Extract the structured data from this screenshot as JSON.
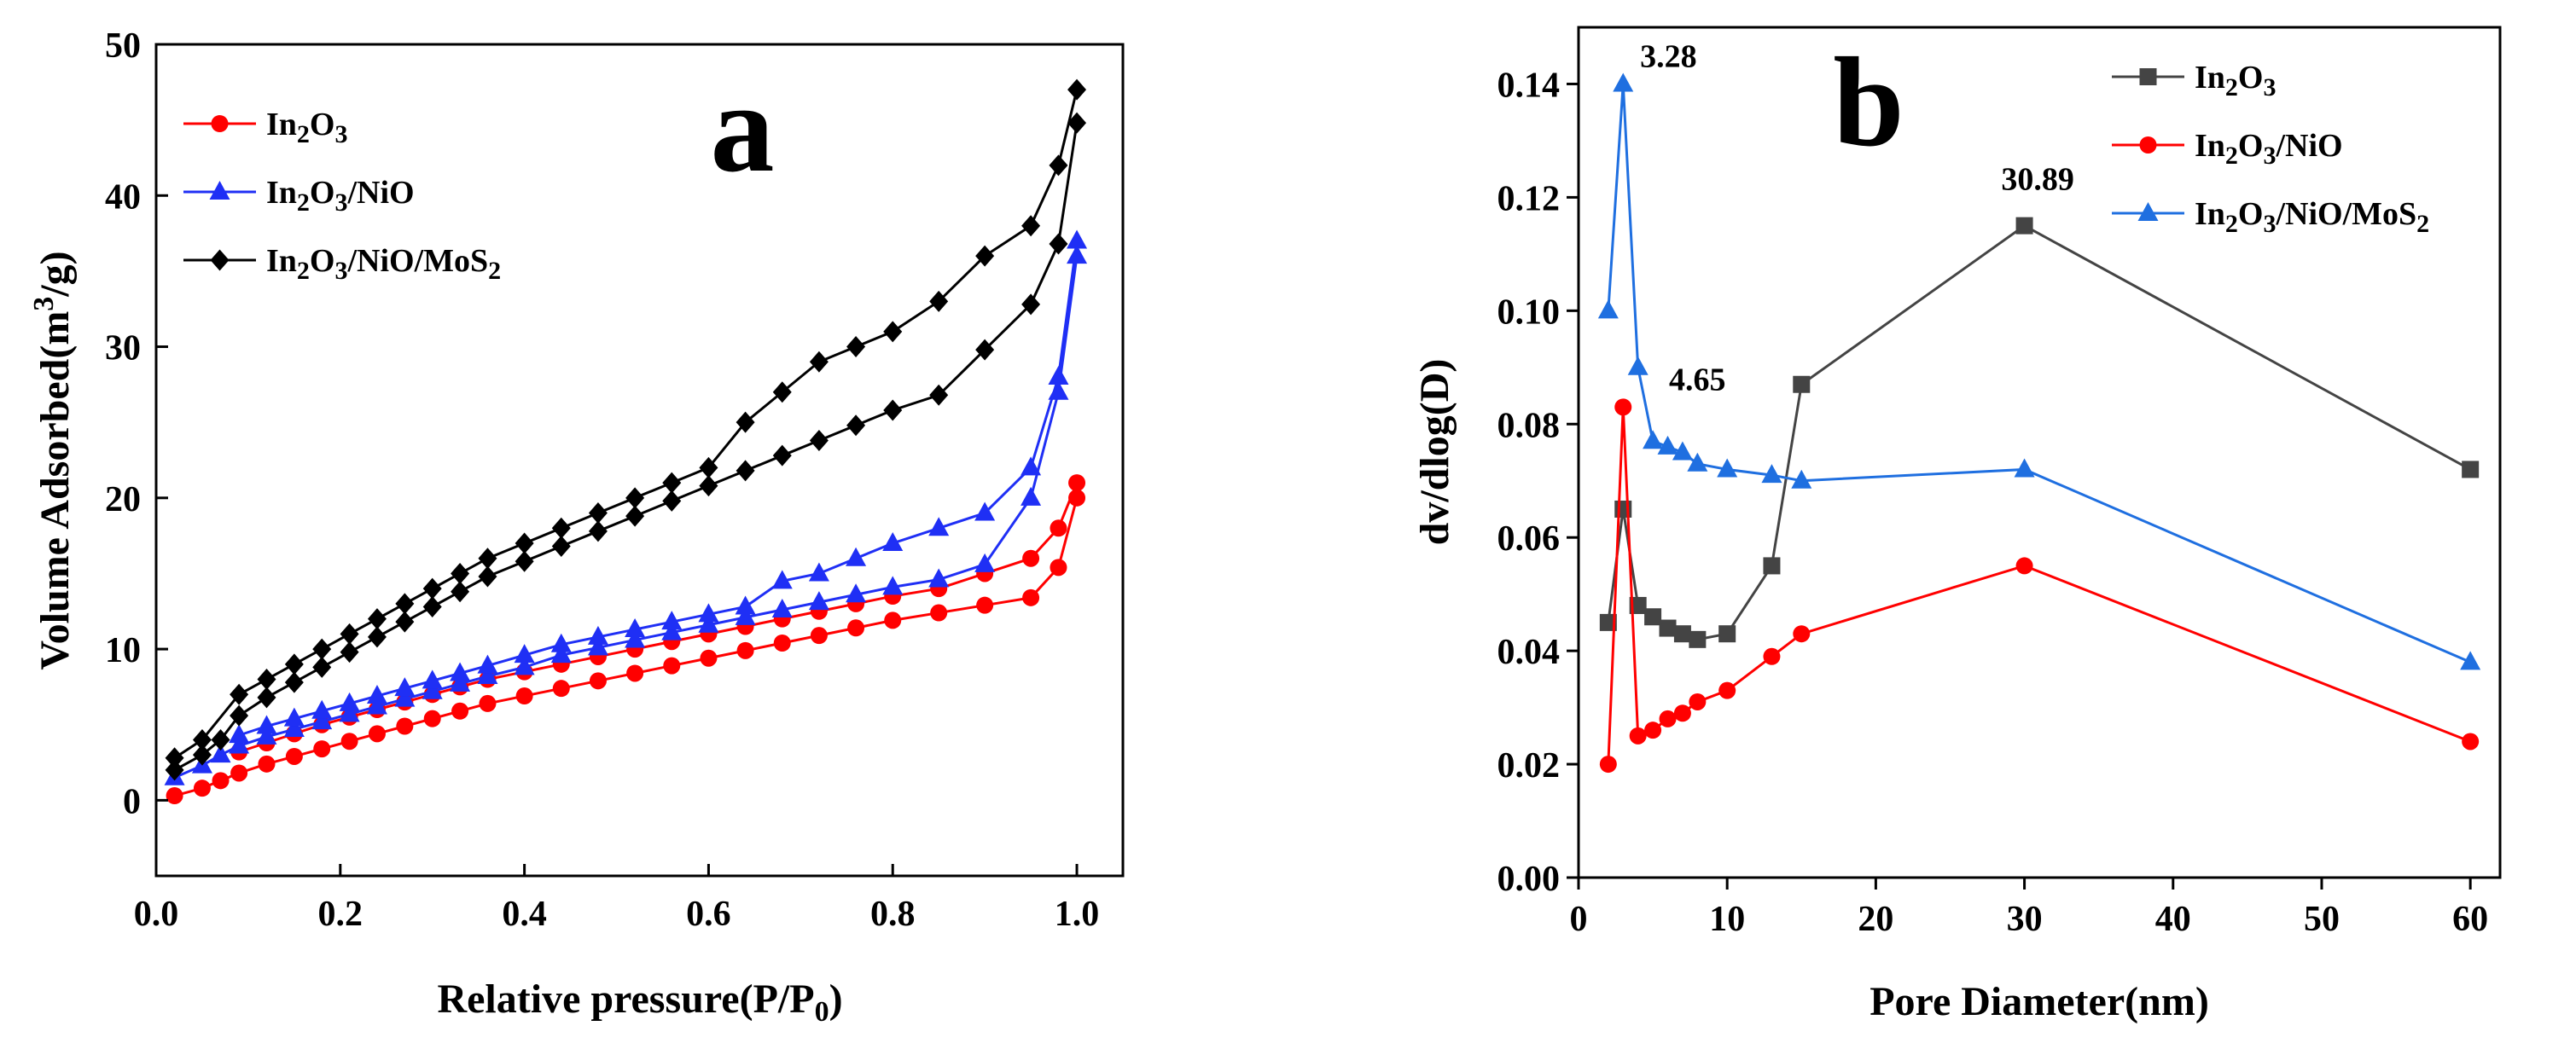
{
  "chart_data": [
    {
      "type": "line",
      "panel_label": "a",
      "xlabel": "Relative pressure(P/P",
      "xlabel_sub": "0",
      "xlabel_end": ")",
      "ylabel": "Volume Adsorbed(m",
      "ylabel_sup": "3",
      "ylabel_end": "/g)",
      "xlim": [
        0,
        1.05
      ],
      "ylim": [
        -5,
        50
      ],
      "xticks": [
        "0.0",
        "0.2",
        "0.4",
        "0.6",
        "0.8",
        "1.0"
      ],
      "yticks": [
        "0",
        "10",
        "20",
        "30",
        "40",
        "50"
      ],
      "legend_position": "top-left",
      "series": [
        {
          "name": "In2O3",
          "legend": {
            "t1": "In",
            "s1": "2",
            "t2": "O",
            "s2": "3",
            "t3": "",
            "s3": ""
          },
          "color": "#ff0000",
          "marker": "circle",
          "adsorption": {
            "x": [
              0.02,
              0.05,
              0.07,
              0.09,
              0.12,
              0.15,
              0.18,
              0.21,
              0.24,
              0.27,
              0.3,
              0.33,
              0.36,
              0.4,
              0.44,
              0.48,
              0.52,
              0.56,
              0.6,
              0.64,
              0.68,
              0.72,
              0.76,
              0.8,
              0.85,
              0.9,
              0.95,
              0.98,
              1.0
            ],
            "y": [
              0.3,
              0.8,
              1.3,
              1.8,
              2.4,
              2.9,
              3.4,
              3.9,
              4.4,
              4.9,
              5.4,
              5.9,
              6.4,
              6.9,
              7.4,
              7.9,
              8.4,
              8.9,
              9.4,
              9.9,
              10.4,
              10.9,
              11.4,
              11.9,
              12.4,
              12.9,
              13.4,
              15.4,
              20.0
            ]
          },
          "desorption": {
            "x": [
              1.0,
              0.98,
              0.95,
              0.9,
              0.85,
              0.8,
              0.76,
              0.72,
              0.68,
              0.64,
              0.6,
              0.56,
              0.52,
              0.48,
              0.44,
              0.4,
              0.36,
              0.33,
              0.3,
              0.27,
              0.24,
              0.21,
              0.18,
              0.15,
              0.12,
              0.09
            ],
            "y": [
              21.0,
              18.0,
              16.0,
              15.0,
              14.0,
              13.5,
              13.0,
              12.5,
              12.0,
              11.5,
              11.0,
              10.5,
              10.0,
              9.5,
              9.0,
              8.5,
              8.0,
              7.5,
              7.0,
              6.5,
              6.0,
              5.5,
              5.0,
              4.4,
              3.8,
              3.2
            ]
          }
        },
        {
          "name": "In2O3/NiO",
          "legend": {
            "t1": "In",
            "s1": "2",
            "t2": "O",
            "s2": "3",
            "t3": "/NiO",
            "s3": ""
          },
          "color": "#1f2ff5",
          "marker": "triangle",
          "adsorption": {
            "x": [
              0.02,
              0.05,
              0.07,
              0.09,
              0.12,
              0.15,
              0.18,
              0.21,
              0.24,
              0.27,
              0.3,
              0.33,
              0.36,
              0.4,
              0.44,
              0.48,
              0.52,
              0.56,
              0.6,
              0.64,
              0.68,
              0.72,
              0.76,
              0.8,
              0.85,
              0.9,
              0.95,
              0.98,
              1.0
            ],
            "y": [
              1.5,
              2.3,
              3.0,
              3.6,
              4.2,
              4.7,
              5.2,
              5.7,
              6.2,
              6.7,
              7.2,
              7.7,
              8.2,
              8.8,
              9.6,
              10.1,
              10.6,
              11.1,
              11.6,
              12.1,
              12.6,
              13.1,
              13.6,
              14.1,
              14.6,
              15.6,
              20.0,
              27.0,
              36.0
            ]
          },
          "desorption": {
            "x": [
              1.0,
              0.98,
              0.95,
              0.9,
              0.85,
              0.8,
              0.76,
              0.72,
              0.68,
              0.64,
              0.6,
              0.56,
              0.52,
              0.48,
              0.44,
              0.4,
              0.36,
              0.33,
              0.3,
              0.27,
              0.24,
              0.21,
              0.18,
              0.15,
              0.12,
              0.09
            ],
            "y": [
              37.0,
              28.0,
              22.0,
              19.0,
              18.0,
              17.0,
              16.0,
              15.0,
              14.5,
              12.8,
              12.3,
              11.8,
              11.3,
              10.8,
              10.3,
              9.6,
              8.9,
              8.4,
              7.9,
              7.4,
              6.9,
              6.4,
              5.9,
              5.4,
              4.9,
              4.3
            ]
          }
        },
        {
          "name": "In2O3/NiO/MoS2",
          "legend": {
            "t1": "In",
            "s1": "2",
            "t2": "O",
            "s2": "3",
            "t3": "/NiO/MoS",
            "s3": "2"
          },
          "color": "#000000",
          "marker": "diamond",
          "adsorption": {
            "x": [
              0.02,
              0.05,
              0.07,
              0.09,
              0.12,
              0.15,
              0.18,
              0.21,
              0.24,
              0.27,
              0.3,
              0.33,
              0.36,
              0.4,
              0.44,
              0.48,
              0.52,
              0.56,
              0.6,
              0.64,
              0.68,
              0.72,
              0.76,
              0.8,
              0.85,
              0.9,
              0.95,
              0.98,
              1.0
            ],
            "y": [
              2.0,
              3.0,
              4.0,
              5.6,
              6.8,
              7.8,
              8.8,
              9.8,
              10.8,
              11.8,
              12.8,
              13.8,
              14.8,
              15.8,
              16.8,
              17.8,
              18.8,
              19.8,
              20.8,
              21.8,
              22.8,
              23.8,
              24.8,
              25.8,
              26.8,
              29.8,
              32.8,
              36.8,
              44.8
            ]
          },
          "desorption": {
            "x": [
              1.0,
              0.98,
              0.95,
              0.9,
              0.85,
              0.8,
              0.76,
              0.72,
              0.68,
              0.64,
              0.6,
              0.56,
              0.52,
              0.48,
              0.44,
              0.4,
              0.36,
              0.33,
              0.3,
              0.27,
              0.24,
              0.21,
              0.18,
              0.15,
              0.12,
              0.09,
              0.05,
              0.02
            ],
            "y": [
              47.0,
              42.0,
              38.0,
              36.0,
              33.0,
              31.0,
              30.0,
              29.0,
              27.0,
              25.0,
              22.0,
              21.0,
              20.0,
              19.0,
              18.0,
              17.0,
              16.0,
              15.0,
              14.0,
              13.0,
              12.0,
              11.0,
              10.0,
              9.0,
              8.0,
              7.0,
              4.0,
              2.8
            ]
          }
        }
      ]
    },
    {
      "type": "line",
      "panel_label": "b",
      "xlabel": "Pore Diameter(nm)",
      "ylabel": "dv/dlog(D)",
      "xlim": [
        0,
        62
      ],
      "ylim": [
        0,
        0.15
      ],
      "xticks": [
        "0",
        "10",
        "20",
        "30",
        "40",
        "50",
        "60"
      ],
      "yticks": [
        "0.00",
        "0.02",
        "0.04",
        "0.06",
        "0.08",
        "0.10",
        "0.12",
        "0.14"
      ],
      "legend_position": "top-right",
      "annotations": [
        {
          "text": "3.28",
          "x": 3.28,
          "y": 0.14
        },
        {
          "text": "4.65",
          "x": 4.65,
          "y": 0.083
        },
        {
          "text": "30.89",
          "x": 30.89,
          "y": 0.115
        }
      ],
      "series": [
        {
          "name": "In2O3",
          "legend": {
            "t1": "In",
            "s1": "2",
            "t2": "O",
            "s2": "3",
            "t3": "",
            "s3": ""
          },
          "color": "#444444",
          "marker": "square",
          "x": [
            2,
            3,
            4,
            5,
            6,
            7,
            8,
            10,
            13,
            15,
            30,
            60
          ],
          "y": [
            0.045,
            0.065,
            0.048,
            0.046,
            0.044,
            0.043,
            0.042,
            0.043,
            0.055,
            0.087,
            0.115,
            0.072
          ]
        },
        {
          "name": "In2O3/NiO",
          "legend": {
            "t1": "In",
            "s1": "2",
            "t2": "O",
            "s2": "3",
            "t3": "/NiO",
            "s3": ""
          },
          "color": "#ff0000",
          "marker": "circle",
          "x": [
            2,
            3,
            4,
            5,
            6,
            7,
            8,
            10,
            13,
            15,
            30,
            60
          ],
          "y": [
            0.02,
            0.083,
            0.025,
            0.026,
            0.028,
            0.029,
            0.031,
            0.033,
            0.039,
            0.043,
            0.055,
            0.024
          ]
        },
        {
          "name": "In2O3/NiO/MoS2",
          "legend": {
            "t1": "In",
            "s1": "2",
            "t2": "O",
            "s2": "3",
            "t3": "/NiO/MoS",
            "s3": "2"
          },
          "color": "#1f6fe0",
          "marker": "triangle",
          "x": [
            2,
            3,
            4,
            5,
            6,
            7,
            8,
            10,
            13,
            15,
            30,
            60
          ],
          "y": [
            0.1,
            0.14,
            0.09,
            0.077,
            0.076,
            0.075,
            0.073,
            0.072,
            0.071,
            0.07,
            0.072,
            0.038
          ]
        }
      ]
    }
  ]
}
